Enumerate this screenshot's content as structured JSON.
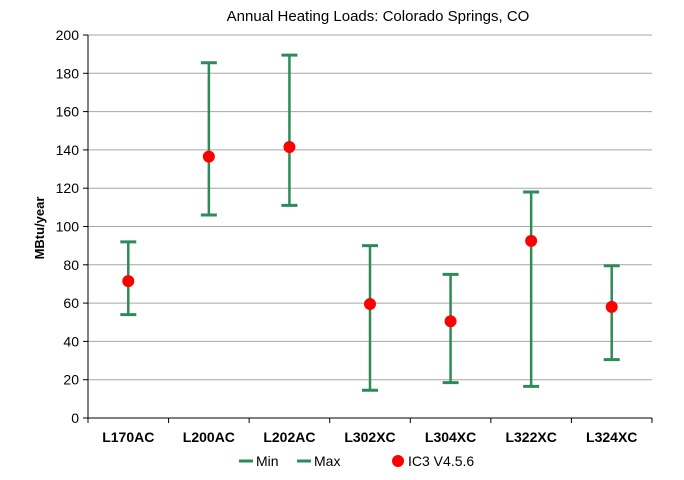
{
  "chart_data": {
    "type": "scatter",
    "title": "Annual Heating Loads:  Colorado Springs, CO",
    "xlabel": "",
    "ylabel": "MBtu/year",
    "ylim": [
      0,
      200
    ],
    "yticks": [
      0,
      20,
      40,
      60,
      80,
      100,
      120,
      140,
      160,
      180,
      200
    ],
    "grid": true,
    "legend_position": "bottom",
    "categories": [
      "L170AC",
      "L200AC",
      "L202AC",
      "L302XC",
      "L304XC",
      "L322XC",
      "L324XC"
    ],
    "series": [
      {
        "name": "Min",
        "values": [
          54,
          106,
          111,
          14.5,
          18.5,
          16.5,
          30.5
        ],
        "color": "#2e8b57"
      },
      {
        "name": "Max",
        "values": [
          92,
          185.5,
          189.5,
          90,
          75,
          118,
          79.5
        ],
        "color": "#2e8b57"
      },
      {
        "name": "IC3 V4.5.6",
        "values": [
          71.5,
          136.5,
          141.5,
          59.5,
          50.5,
          92.5,
          58
        ],
        "color": "#ff0000"
      }
    ]
  }
}
